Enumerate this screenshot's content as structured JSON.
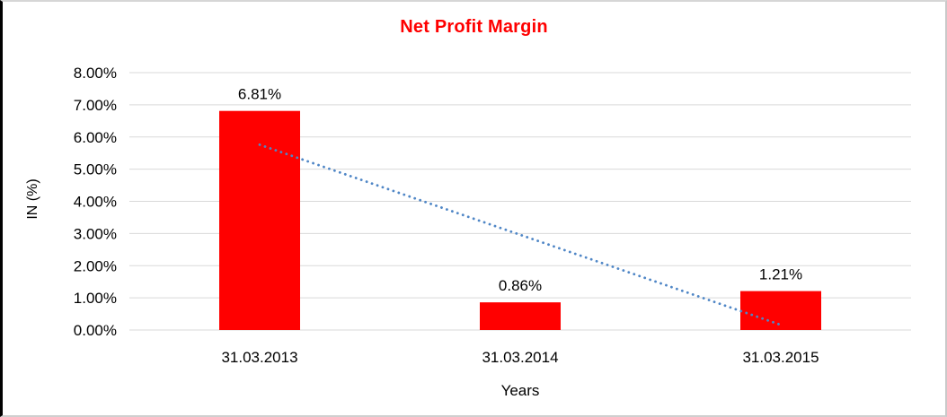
{
  "window": {
    "background": "#ffffff",
    "border_color": "#d6d6d6",
    "left_border_color": "#000000"
  },
  "chart_data": {
    "type": "bar",
    "title": "Net Profit Margin",
    "title_color": "#ff0000",
    "xlabel": "Years",
    "ylabel": "IN (%)",
    "categories": [
      "31.03.2013",
      "31.03.2014",
      "31.03.2015"
    ],
    "values": [
      6.81,
      0.86,
      1.21
    ],
    "data_labels": [
      "6.81%",
      "0.86%",
      "1.21%"
    ],
    "ylim": [
      0,
      8
    ],
    "ytick_step": 1,
    "ytick_labels": [
      "0.00%",
      "1.00%",
      "2.00%",
      "3.00%",
      "4.00%",
      "5.00%",
      "6.00%",
      "7.00%",
      "8.00%"
    ],
    "bar_color": "#ff0000",
    "grid": true,
    "gridline_color": "#d9d9d9",
    "legend_position": "none",
    "text_color": "#000000",
    "trendline": {
      "type": "linear",
      "style": "dotted",
      "color": "#4f86c6",
      "start_value": 5.76,
      "end_value": 0.16
    }
  }
}
